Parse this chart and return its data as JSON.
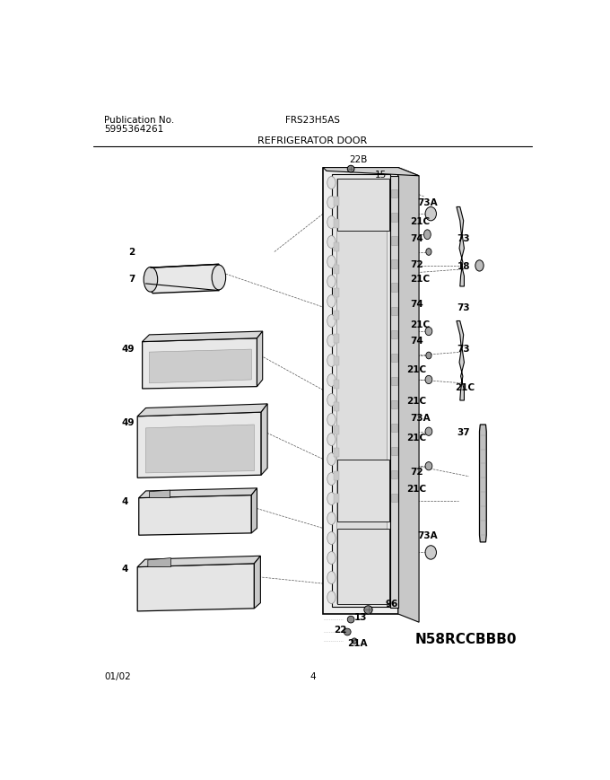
{
  "title_left_line1": "Publication No.",
  "title_left_line2": "5995364261",
  "title_center": "FRS23H5AS",
  "section_title": "REFRIGERATOR DOOR",
  "model_code": "N58RCCBBB0",
  "date": "01/02",
  "page": "4",
  "bg_color": "#ffffff",
  "text_color": "#000000"
}
